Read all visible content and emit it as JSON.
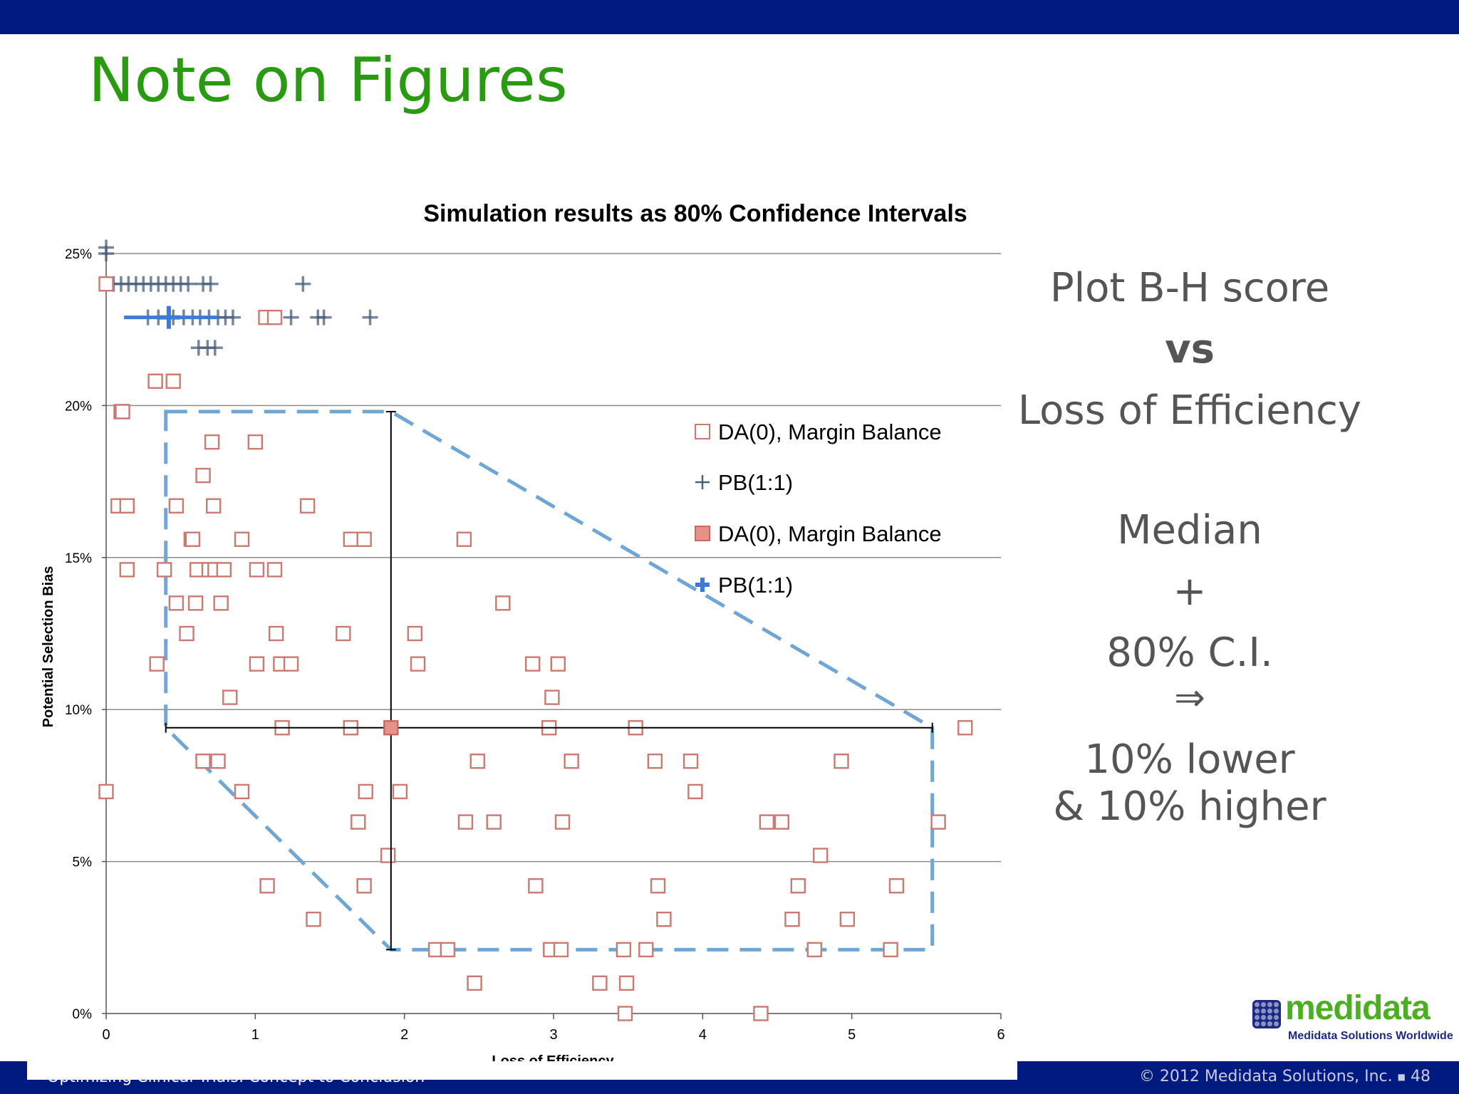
{
  "slide": {
    "title": "Note on Figures",
    "notes": [
      "Plot B-H score",
      "vs",
      "Loss of Efficiency",
      "Median",
      "+",
      "80% C.I.",
      "⇒",
      "10% lower",
      "& 10% higher"
    ],
    "footer_left": "Optimizing Clinical Trials: Concept to Conclusion",
    "copyright": "© 2012 Medidata Solutions, Inc.",
    "page_number": "48",
    "logo": {
      "name": "medidata",
      "tagline": "Medidata Solutions Worldwide"
    },
    "colors": {
      "title": "#2a9a13",
      "header_bar": "#001a80",
      "notes": "#555555"
    }
  },
  "chart_data": {
    "type": "scatter",
    "title": "Simulation results as 80% Confidence Intervals",
    "xlabel": "Loss of Efficiency",
    "ylabel": "Potential Selection Bias",
    "xlim": [
      0,
      6
    ],
    "ylim": [
      0,
      0.25
    ],
    "x_ticks": [
      "0",
      "1",
      "2",
      "3",
      "4",
      "5",
      "6"
    ],
    "y_ticks": [
      "0%",
      "5%",
      "10%",
      "15%",
      "20%",
      "25%"
    ],
    "grid": "horizontal",
    "legend_placement": "upper-right",
    "legend": [
      "DA(0), Margin Balance",
      "PB(1:1)",
      "DA(0), Margin Balance",
      "PB(1:1)"
    ],
    "series": [
      {
        "name": "DA(0), Margin Balance",
        "marker": "open-square",
        "color": "#c97a72",
        "points": [
          [
            0.0,
            0.24
          ],
          [
            0.0,
            0.073
          ],
          [
            0.1,
            0.198
          ],
          [
            0.11,
            0.198
          ],
          [
            0.08,
            0.167
          ],
          [
            0.14,
            0.167
          ],
          [
            0.14,
            0.146
          ],
          [
            0.33,
            0.208
          ],
          [
            0.45,
            0.208
          ],
          [
            0.34,
            0.115
          ],
          [
            0.39,
            0.146
          ],
          [
            0.47,
            0.167
          ],
          [
            0.47,
            0.135
          ],
          [
            0.54,
            0.125
          ],
          [
            0.57,
            0.156
          ],
          [
            0.58,
            0.156
          ],
          [
            0.6,
            0.135
          ],
          [
            0.61,
            0.146
          ],
          [
            0.65,
            0.177
          ],
          [
            0.65,
            0.083
          ],
          [
            0.69,
            0.146
          ],
          [
            0.72,
            0.167
          ],
          [
            0.71,
            0.188
          ],
          [
            0.73,
            0.146
          ],
          [
            0.75,
            0.083
          ],
          [
            0.77,
            0.135
          ],
          [
            0.79,
            0.146
          ],
          [
            0.83,
            0.104
          ],
          [
            0.91,
            0.073
          ],
          [
            0.91,
            0.156
          ],
          [
            1.0,
            0.188
          ],
          [
            1.01,
            0.146
          ],
          [
            1.01,
            0.115
          ],
          [
            1.08,
            0.042
          ],
          [
            1.13,
            0.146
          ],
          [
            1.14,
            0.125
          ],
          [
            1.17,
            0.115
          ],
          [
            1.18,
            0.094
          ],
          [
            1.24,
            0.115
          ],
          [
            1.07,
            0.229
          ],
          [
            1.13,
            0.229
          ],
          [
            1.35,
            0.167
          ],
          [
            1.39,
            0.031
          ],
          [
            1.59,
            0.125
          ],
          [
            1.64,
            0.156
          ],
          [
            1.64,
            0.094
          ],
          [
            1.69,
            0.063
          ],
          [
            1.73,
            0.156
          ],
          [
            1.73,
            0.042
          ],
          [
            1.74,
            0.073
          ],
          [
            1.89,
            0.052
          ],
          [
            1.97,
            0.073
          ],
          [
            2.07,
            0.125
          ],
          [
            2.09,
            0.115
          ],
          [
            2.21,
            0.021
          ],
          [
            2.29,
            0.021
          ],
          [
            2.4,
            0.156
          ],
          [
            2.41,
            0.063
          ],
          [
            2.47,
            0.01
          ],
          [
            2.49,
            0.083
          ],
          [
            2.6,
            0.063
          ],
          [
            2.66,
            0.135
          ],
          [
            2.86,
            0.115
          ],
          [
            2.88,
            0.042
          ],
          [
            2.97,
            0.094
          ],
          [
            2.98,
            0.021
          ],
          [
            2.99,
            0.104
          ],
          [
            3.03,
            0.115
          ],
          [
            3.05,
            0.021
          ],
          [
            3.06,
            0.063
          ],
          [
            3.12,
            0.083
          ],
          [
            3.31,
            0.01
          ],
          [
            3.47,
            0.021
          ],
          [
            3.48,
            0.0
          ],
          [
            3.49,
            0.01
          ],
          [
            3.55,
            0.094
          ],
          [
            3.62,
            0.021
          ],
          [
            3.68,
            0.083
          ],
          [
            3.7,
            0.042
          ],
          [
            3.74,
            0.031
          ],
          [
            3.92,
            0.083
          ],
          [
            3.95,
            0.073
          ],
          [
            4.39,
            0.0
          ],
          [
            4.43,
            0.063
          ],
          [
            4.53,
            0.063
          ],
          [
            4.6,
            0.031
          ],
          [
            4.64,
            0.042
          ],
          [
            4.75,
            0.021
          ],
          [
            4.79,
            0.052
          ],
          [
            4.93,
            0.083
          ],
          [
            4.97,
            0.031
          ],
          [
            5.26,
            0.021
          ],
          [
            5.3,
            0.042
          ],
          [
            5.58,
            0.063
          ],
          [
            5.76,
            0.094
          ]
        ]
      },
      {
        "name": "PB(1:1)",
        "marker": "plus",
        "color": "#4a5f7a",
        "points": [
          [
            0.0,
            0.25
          ],
          [
            0.0,
            0.252
          ],
          [
            0.05,
            0.24
          ],
          [
            0.1,
            0.24
          ],
          [
            0.15,
            0.24
          ],
          [
            0.2,
            0.24
          ],
          [
            0.25,
            0.24
          ],
          [
            0.3,
            0.24
          ],
          [
            0.35,
            0.24
          ],
          [
            0.4,
            0.24
          ],
          [
            0.45,
            0.24
          ],
          [
            0.5,
            0.24
          ],
          [
            0.55,
            0.24
          ],
          [
            0.65,
            0.24
          ],
          [
            0.7,
            0.24
          ],
          [
            1.32,
            0.24
          ],
          [
            0.28,
            0.229
          ],
          [
            0.35,
            0.229
          ],
          [
            0.45,
            0.229
          ],
          [
            0.52,
            0.229
          ],
          [
            0.58,
            0.229
          ],
          [
            0.63,
            0.229
          ],
          [
            0.69,
            0.229
          ],
          [
            0.75,
            0.229
          ],
          [
            0.8,
            0.229
          ],
          [
            0.85,
            0.229
          ],
          [
            1.24,
            0.229
          ],
          [
            1.42,
            0.229
          ],
          [
            1.46,
            0.229
          ],
          [
            1.77,
            0.229
          ],
          [
            0.62,
            0.219
          ],
          [
            0.68,
            0.219
          ],
          [
            0.73,
            0.219
          ]
        ]
      },
      {
        "name": "DA(0), Margin Balance",
        "marker": "filled-square",
        "color": "#e8918a",
        "points": [
          [
            1.91,
            0.094
          ]
        ],
        "error_x": [
          0.4,
          5.54
        ],
        "error_y": [
          0.021,
          0.198
        ]
      },
      {
        "name": "PB(1:1)",
        "marker": "filled-plus",
        "color": "#3d7ad6",
        "points": [
          [
            0.42,
            0.229
          ]
        ],
        "error_x": [
          0.12,
          0.75
        ]
      }
    ],
    "annotations": [
      "dashed polygon enclosing the 80% confidence region of DA(0), Margin Balance"
    ]
  }
}
